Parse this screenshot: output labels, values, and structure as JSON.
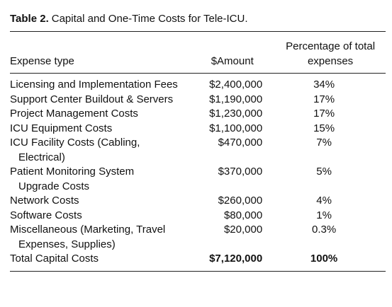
{
  "table": {
    "label": "Table 2.",
    "title": "Capital and One-Time Costs for Tele-ICU.",
    "header": [
      "Expense type",
      "$Amount",
      "Percentage of total expenses"
    ],
    "rows": [
      [
        "Licensing and Implementation Fees",
        "$2,400,000",
        "34%"
      ],
      [
        "Support Center Buildout & Servers",
        "$1,190,000",
        "17%"
      ],
      [
        "Project Management Costs",
        "$1,230,000",
        "17%"
      ],
      [
        "ICU Equipment Costs",
        "$1,100,000",
        "15%"
      ],
      [
        "ICU Facility Costs (Cabling, Electrical)",
        "$470,000",
        "7%"
      ],
      [
        "Patient Monitoring System Upgrade Costs",
        "$370,000",
        "5%"
      ],
      [
        "Network Costs",
        "$260,000",
        "4%"
      ],
      [
        "Software Costs",
        "$80,000",
        "1%"
      ],
      [
        "Miscellaneous (Marketing, Travel Expenses, Supplies)",
        "$20,000",
        "0.3%"
      ],
      [
        "Total Capital Costs",
        "$7,120,000",
        "100%"
      ]
    ]
  }
}
